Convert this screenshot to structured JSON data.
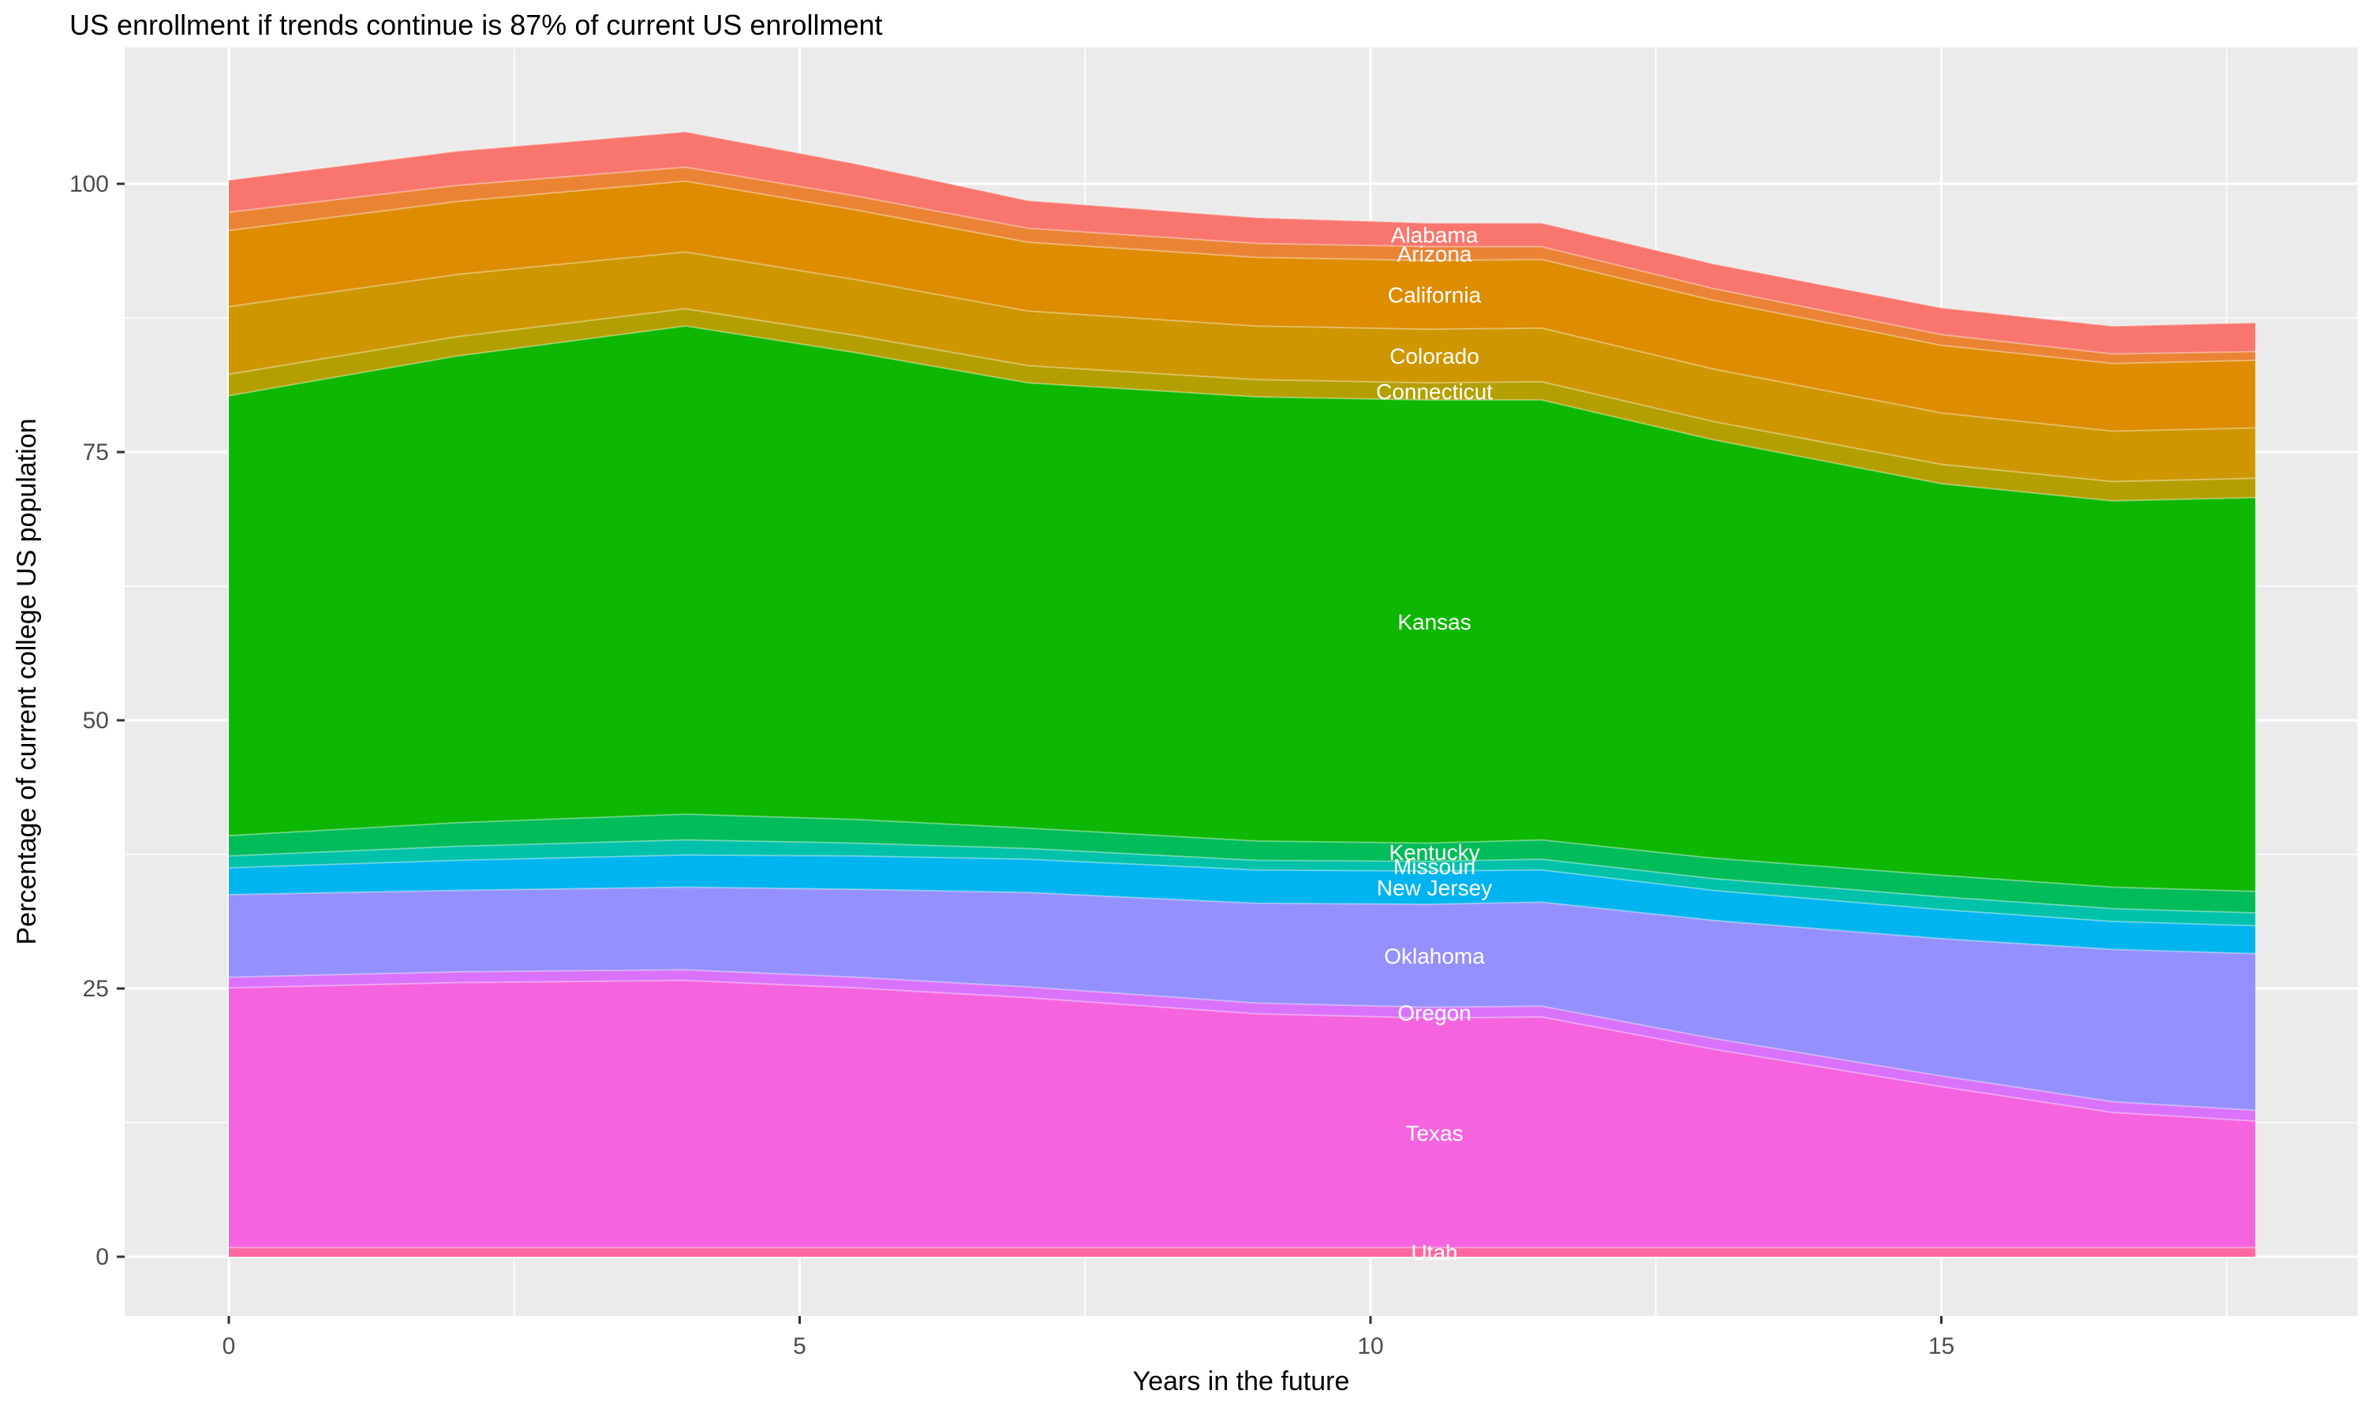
{
  "title": "US enrollment if trends continue is 87% of current US enrollment",
  "axes": {
    "x_label": "Years in the future",
    "y_label": "Percentage of current college US population",
    "x_ticks": [
      0,
      5,
      10,
      15
    ],
    "y_ticks": [
      0,
      25,
      50,
      75,
      100
    ]
  },
  "style": {
    "panel_bg": "#EBEBEB",
    "grid_color": "#FFFFFF",
    "tick_label_color": "#4D4D4D",
    "tick_mark_color": "#333333",
    "title_color": "#000000",
    "state_label_color": "#FFFFFF"
  },
  "chart_data": {
    "type": "area",
    "stacked": true,
    "title": "US enrollment if trends continue is 87% of current US enrollment",
    "xlabel": "Years in the future",
    "ylabel": "Percentage of current college US population",
    "xlim": [
      -0.9,
      18.65
    ],
    "ylim": [
      -5.5,
      110
    ],
    "x_ticks": [
      0,
      5,
      10,
      15
    ],
    "y_ticks": [
      0,
      25,
      50,
      75,
      100
    ],
    "grid": true,
    "legend_position": "none",
    "label_x": 10.56,
    "x": [
      0,
      2,
      4,
      5.5,
      7,
      9,
      10.5,
      11.5,
      13,
      15,
      16.5,
      17.75
    ],
    "series": [
      {
        "name": "Utah",
        "color": "#FF689F",
        "values": [
          0.85,
          0.85,
          0.85,
          0.85,
          0.85,
          0.85,
          0.85,
          0.85,
          0.85,
          0.85,
          0.85,
          0.85
        ]
      },
      {
        "name": "Texas",
        "color": "#F564DE",
        "values": [
          24.2,
          24.7,
          24.9,
          24.2,
          23.3,
          21.8,
          21.4,
          21.5,
          18.5,
          15.0,
          12.6,
          11.8
        ]
      },
      {
        "name": "Oregon",
        "color": "#DB72FB",
        "values": [
          1.0,
          1.0,
          1.0,
          1.0,
          1.0,
          1.0,
          1.0,
          1.0,
          1.0,
          1.0,
          1.0,
          1.0
        ]
      },
      {
        "name": "Oklahoma",
        "color": "#9590FF",
        "values": [
          7.7,
          7.6,
          7.7,
          8.2,
          8.8,
          9.3,
          9.6,
          9.7,
          11.0,
          12.8,
          14.2,
          14.6
        ]
      },
      {
        "name": "New Jersey",
        "color": "#00B4EF",
        "values": [
          2.5,
          2.8,
          3.0,
          3.1,
          3.1,
          3.1,
          3.1,
          3.0,
          2.8,
          2.7,
          2.6,
          2.6
        ]
      },
      {
        "name": "Missouri",
        "color": "#00C1A9",
        "values": [
          1.1,
          1.3,
          1.4,
          1.2,
          1.0,
          0.9,
          0.9,
          1.0,
          1.1,
          1.2,
          1.2,
          1.2
        ]
      },
      {
        "name": "Kentucky",
        "color": "#00BC59",
        "values": [
          1.9,
          2.2,
          2.4,
          2.2,
          1.9,
          1.8,
          1.7,
          1.8,
          1.9,
          2.0,
          2.0,
          2.0
        ]
      },
      {
        "name": "Kansas",
        "color": "#0DB702",
        "values": [
          41.0,
          43.5,
          45.5,
          43.5,
          41.5,
          41.4,
          41.3,
          41.0,
          39.0,
          36.5,
          36.0,
          36.7
        ]
      },
      {
        "name": "Connecticut",
        "color": "#B3A000",
        "values": [
          2.0,
          1.8,
          1.6,
          1.6,
          1.6,
          1.6,
          1.6,
          1.7,
          1.7,
          1.8,
          1.8,
          1.8
        ]
      },
      {
        "name": "Colorado",
        "color": "#CE9700",
        "values": [
          6.3,
          5.8,
          5.3,
          5.2,
          5.1,
          5.0,
          5.0,
          5.0,
          4.9,
          4.8,
          4.7,
          4.7
        ]
      },
      {
        "name": "California",
        "color": "#DE8C00",
        "values": [
          7.1,
          6.8,
          6.6,
          6.5,
          6.4,
          6.4,
          6.4,
          6.4,
          6.4,
          6.3,
          6.3,
          6.3
        ]
      },
      {
        "name": "Arizona",
        "color": "#EB8335",
        "values": [
          1.7,
          1.5,
          1.3,
          1.3,
          1.3,
          1.3,
          1.3,
          1.2,
          1.1,
          1.0,
          0.9,
          0.8
        ]
      },
      {
        "name": "Alabama",
        "color": "#F8766D",
        "values": [
          3.0,
          3.2,
          3.3,
          3.0,
          2.6,
          2.4,
          2.2,
          2.2,
          2.3,
          2.5,
          2.6,
          2.7
        ]
      }
    ]
  }
}
